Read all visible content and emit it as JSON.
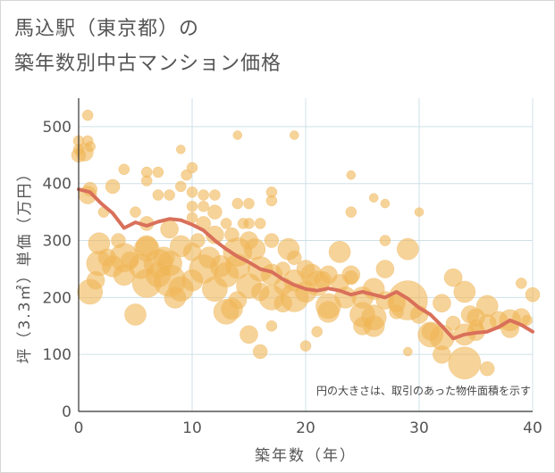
{
  "title_line1": "馬込駅（東京都）の",
  "title_line2": "築年数別中古マンション価格",
  "chart_data": {
    "type": "scatter",
    "title": "馬込駅（東京都）の築年数別中古マンション価格",
    "xlabel": "築年数（年）",
    "ylabel": "坪（3.3㎡）単価（万円）",
    "xlim": [
      0,
      40
    ],
    "ylim": [
      0,
      550
    ],
    "xticks": [
      0,
      10,
      20,
      30,
      40
    ],
    "yticks": [
      0,
      100,
      200,
      300,
      400,
      500
    ],
    "grid": true,
    "note": "円の大きさは、取引のあった物件面積を示す",
    "colors": {
      "bubble": "#f0b555",
      "trend": "#d9705a",
      "grid": "#cfe0e8"
    },
    "points": [
      [
        0,
        475,
        6
      ],
      [
        0,
        460,
        6
      ],
      [
        0,
        450,
        8
      ],
      [
        0.5,
        455,
        10
      ],
      [
        0.8,
        520,
        6
      ],
      [
        0.8,
        475,
        6
      ],
      [
        1,
        465,
        6
      ],
      [
        0.8,
        380,
        10
      ],
      [
        1,
        390,
        8
      ],
      [
        1,
        210,
        14
      ],
      [
        1.5,
        230,
        10
      ],
      [
        1.8,
        295,
        12
      ],
      [
        1.8,
        260,
        14
      ],
      [
        2.2,
        350,
        6
      ],
      [
        2.5,
        270,
        10
      ],
      [
        3,
        395,
        8
      ],
      [
        3,
        255,
        12
      ],
      [
        3.5,
        300,
        8
      ],
      [
        4,
        425,
        6
      ],
      [
        4,
        270,
        16
      ],
      [
        4,
        240,
        12
      ],
      [
        4.5,
        265,
        10
      ],
      [
        5,
        170,
        12
      ],
      [
        5,
        350,
        6
      ],
      [
        5.5,
        255,
        14
      ],
      [
        6,
        420,
        6
      ],
      [
        6,
        405,
        6
      ],
      [
        6,
        330,
        8
      ],
      [
        6,
        290,
        12
      ],
      [
        6,
        225,
        16
      ],
      [
        6,
        285,
        14
      ],
      [
        7,
        420,
        6
      ],
      [
        7,
        380,
        6
      ],
      [
        7,
        260,
        16
      ],
      [
        7,
        240,
        14
      ],
      [
        7.5,
        270,
        12
      ],
      [
        8,
        380,
        6
      ],
      [
        8,
        320,
        10
      ],
      [
        8,
        260,
        14
      ],
      [
        8,
        230,
        18
      ],
      [
        8.5,
        200,
        12
      ],
      [
        9,
        460,
        5
      ],
      [
        9,
        395,
        6
      ],
      [
        9,
        290,
        12
      ],
      [
        9,
        215,
        14
      ],
      [
        9.5,
        415,
        6
      ],
      [
        10,
        428,
        6
      ],
      [
        10,
        385,
        6
      ],
      [
        10,
        360,
        6
      ],
      [
        10,
        340,
        6
      ],
      [
        10,
        280,
        10
      ],
      [
        10,
        230,
        12
      ],
      [
        10.5,
        300,
        8
      ],
      [
        11,
        380,
        6
      ],
      [
        11,
        360,
        6
      ],
      [
        11,
        330,
        8
      ],
      [
        11,
        250,
        16
      ],
      [
        11.5,
        270,
        12
      ],
      [
        12,
        380,
        6
      ],
      [
        12,
        350,
        8
      ],
      [
        12,
        310,
        10
      ],
      [
        12,
        215,
        14
      ],
      [
        12.5,
        255,
        12
      ],
      [
        13,
        240,
        14
      ],
      [
        13,
        330,
        6
      ],
      [
        13,
        175,
        14
      ],
      [
        13.5,
        310,
        8
      ],
      [
        13.5,
        180,
        12
      ],
      [
        14,
        280,
        16
      ],
      [
        14,
        255,
        14
      ],
      [
        14,
        195,
        10
      ],
      [
        14,
        485,
        5
      ],
      [
        14,
        365,
        6
      ],
      [
        14.5,
        330,
        6
      ],
      [
        15,
        300,
        10
      ],
      [
        15,
        220,
        14
      ],
      [
        15,
        365,
        6
      ],
      [
        15,
        330,
        6
      ],
      [
        15,
        135,
        10
      ],
      [
        15.5,
        285,
        12
      ],
      [
        16,
        250,
        14
      ],
      [
        16,
        330,
        6
      ],
      [
        16,
        210,
        10
      ],
      [
        16,
        105,
        8
      ],
      [
        17,
        385,
        6
      ],
      [
        17,
        370,
        6
      ],
      [
        17,
        300,
        8
      ],
      [
        17,
        240,
        12
      ],
      [
        17,
        200,
        14
      ],
      [
        17,
        150,
        6
      ],
      [
        18,
        220,
        10
      ],
      [
        18,
        190,
        10
      ],
      [
        18,
        250,
        8
      ],
      [
        18.5,
        285,
        12
      ],
      [
        19,
        485,
        5
      ],
      [
        19,
        230,
        12
      ],
      [
        19,
        200,
        16
      ],
      [
        19,
        270,
        8
      ],
      [
        20,
        250,
        10
      ],
      [
        20,
        210,
        12
      ],
      [
        20,
        115,
        6
      ],
      [
        20.5,
        240,
        12
      ],
      [
        21,
        140,
        6
      ],
      [
        21,
        225,
        14
      ],
      [
        21.5,
        230,
        10
      ],
      [
        22,
        240,
        10
      ],
      [
        22,
        185,
        14
      ],
      [
        22,
        175,
        12
      ],
      [
        23,
        280,
        12
      ],
      [
        23,
        225,
        10
      ],
      [
        23.5,
        200,
        12
      ],
      [
        24,
        350,
        6
      ],
      [
        24,
        240,
        10
      ],
      [
        24,
        235,
        8
      ],
      [
        24,
        415,
        5
      ],
      [
        25,
        200,
        12
      ],
      [
        25,
        170,
        14
      ],
      [
        25,
        150,
        10
      ],
      [
        26,
        375,
        5
      ],
      [
        26,
        215,
        12
      ],
      [
        26,
        165,
        14
      ],
      [
        26,
        150,
        12
      ],
      [
        27,
        365,
        5
      ],
      [
        27,
        300,
        6
      ],
      [
        27,
        250,
        10
      ],
      [
        27,
        195,
        10
      ],
      [
        28,
        190,
        10
      ],
      [
        28,
        175,
        8
      ],
      [
        29,
        285,
        12
      ],
      [
        29,
        195,
        22
      ],
      [
        29,
        105,
        5
      ],
      [
        30,
        350,
        5
      ],
      [
        30,
        170,
        10
      ],
      [
        31,
        135,
        14
      ],
      [
        31,
        140,
        10
      ],
      [
        32,
        190,
        10
      ],
      [
        32,
        130,
        14
      ],
      [
        32,
        100,
        10
      ],
      [
        33,
        235,
        10
      ],
      [
        33,
        155,
        8
      ],
      [
        34,
        210,
        12
      ],
      [
        34,
        135,
        12
      ],
      [
        34,
        85,
        18
      ],
      [
        34.5,
        170,
        10
      ],
      [
        35,
        165,
        10
      ],
      [
        35,
        140,
        10
      ],
      [
        35,
        150,
        8
      ],
      [
        36,
        185,
        12
      ],
      [
        36,
        155,
        10
      ],
      [
        36,
        75,
        8
      ],
      [
        37,
        160,
        10
      ],
      [
        38,
        160,
        12
      ],
      [
        38,
        145,
        10
      ],
      [
        39,
        225,
        6
      ],
      [
        39,
        165,
        10
      ],
      [
        39.5,
        160,
        6
      ],
      [
        40,
        205,
        8
      ]
    ],
    "trend": [
      [
        0,
        390
      ],
      [
        1,
        385
      ],
      [
        2,
        365
      ],
      [
        3,
        348
      ],
      [
        4,
        322
      ],
      [
        5,
        332
      ],
      [
        6,
        326
      ],
      [
        7,
        333
      ],
      [
        8,
        338
      ],
      [
        9,
        336
      ],
      [
        10,
        328
      ],
      [
        11,
        318
      ],
      [
        12,
        300
      ],
      [
        13,
        285
      ],
      [
        14,
        272
      ],
      [
        15,
        262
      ],
      [
        16,
        250
      ],
      [
        17,
        245
      ],
      [
        18,
        232
      ],
      [
        19,
        222
      ],
      [
        20,
        215
      ],
      [
        21,
        212
      ],
      [
        22,
        216
      ],
      [
        23,
        212
      ],
      [
        24,
        205
      ],
      [
        25,
        210
      ],
      [
        26,
        205
      ],
      [
        27,
        200
      ],
      [
        28,
        210
      ],
      [
        29,
        198
      ],
      [
        30,
        182
      ],
      [
        31,
        170
      ],
      [
        32,
        150
      ],
      [
        33,
        128
      ],
      [
        34,
        135
      ],
      [
        35,
        138
      ],
      [
        36,
        140
      ],
      [
        37,
        148
      ],
      [
        38,
        160
      ],
      [
        39,
        152
      ],
      [
        40,
        140
      ]
    ]
  }
}
